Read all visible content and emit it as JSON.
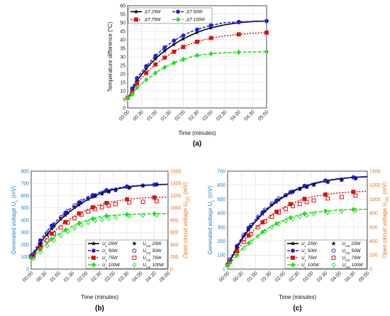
{
  "colors": {
    "s25": "#000000",
    "s50": "#1f1fdc",
    "s75": "#e01010",
    "s100": "#22dd22",
    "volt_axis": "#1e7fc8",
    "ocv_axis": "#e8701a"
  },
  "chart_data": [
    {
      "type": "line",
      "caption": "(a)",
      "xlabel": "Time (minutes)",
      "ylabel": "Temperature difference (°C)",
      "x_ticks": [
        "00:00",
        "00:30",
        "01:00",
        "01:30",
        "02:00",
        "02:30",
        "03:00",
        "03:30",
        "04:00",
        "04:30",
        "05:00"
      ],
      "xlim": [
        0,
        300
      ],
      "ylim": [
        0,
        60
      ],
      "y_ticks": [
        0,
        5,
        10,
        15,
        20,
        25,
        30,
        35,
        40,
        45,
        50,
        55,
        60
      ],
      "grid": true,
      "legend": "top-left",
      "series": [
        {
          "name": "ΔT 25W",
          "color_key": "s25",
          "dash": "",
          "marker": "star",
          "x": [
            0,
            5,
            10,
            15,
            20,
            30,
            40,
            50,
            60,
            70,
            80,
            90,
            100,
            110,
            120,
            135,
            150,
            165,
            180,
            210,
            240,
            270,
            300
          ],
          "y": [
            6,
            7.5,
            10.5,
            13,
            16,
            19.5,
            23,
            26,
            28.8,
            31.3,
            33.5,
            35.5,
            37.3,
            39,
            40.5,
            42.5,
            44.3,
            45.8,
            47,
            48.8,
            50,
            50.7,
            51
          ]
        },
        {
          "name": "ΔT 50W",
          "color_key": "s50",
          "dash": "4,2",
          "marker": "circle",
          "x": [
            0,
            5,
            10,
            15,
            20,
            30,
            40,
            50,
            60,
            70,
            80,
            90,
            100,
            110,
            120,
            135,
            150,
            165,
            180,
            210,
            240,
            270,
            300
          ],
          "y": [
            6,
            8,
            11.5,
            14.5,
            17.5,
            21,
            24.5,
            27.5,
            30.5,
            33,
            35.5,
            37.5,
            39.5,
            41,
            42.5,
            44.5,
            46,
            47.3,
            48.5,
            50,
            50.5,
            50.8,
            51
          ]
        },
        {
          "name": "ΔT 75W",
          "color_key": "s75",
          "dash": "2,2",
          "marker": "square",
          "x": [
            0,
            5,
            10,
            15,
            20,
            30,
            40,
            50,
            60,
            70,
            80,
            90,
            100,
            110,
            120,
            135,
            150,
            165,
            180,
            210,
            240,
            270,
            300
          ],
          "y": [
            6,
            7,
            9.5,
            12,
            14.5,
            17.5,
            20.5,
            23,
            25.5,
            27.5,
            29.5,
            31.3,
            33,
            34.5,
            35.8,
            37.5,
            38.8,
            40,
            41,
            42.3,
            43.2,
            43.8,
            44.2
          ]
        },
        {
          "name": "ΔT 100W",
          "color_key": "s100",
          "dash": "5,2",
          "marker": "diamond",
          "x": [
            0,
            5,
            10,
            15,
            20,
            30,
            40,
            50,
            60,
            70,
            80,
            90,
            100,
            110,
            120,
            135,
            150,
            165,
            180,
            210,
            240,
            270,
            300
          ],
          "y": [
            6,
            6.5,
            8,
            10,
            12,
            14,
            16.5,
            18.5,
            20.5,
            22.3,
            23.8,
            25.2,
            26.5,
            27.5,
            28.5,
            29.8,
            30.8,
            31.4,
            31.8,
            32.4,
            32.7,
            32.9,
            33
          ]
        }
      ]
    },
    {
      "type": "line",
      "caption": "(b)",
      "xlabel": "Time (minutes)",
      "ylabel": "Generated voltage U_L (mV)",
      "y2label": "Open circuit voltage U_OC (mV)",
      "x_ticks": [
        "00:00",
        "00:30",
        "01:00",
        "01:30",
        "02:00",
        "02:30",
        "03:00",
        "03:30",
        "04:00",
        "04:30",
        "05:00"
      ],
      "xlim": [
        0,
        300
      ],
      "ylim": [
        0,
        800
      ],
      "y_ticks": [
        0,
        100,
        200,
        300,
        400,
        500,
        600,
        700,
        800
      ],
      "y2lim": [
        0,
        1600
      ],
      "y2_ticks": [
        0,
        200,
        400,
        600,
        800,
        1000,
        1200,
        1400,
        1600
      ],
      "grid": true,
      "legend": "bottom-right",
      "series": [
        {
          "name": "U_L 25W",
          "color_key": "s25",
          "dash": "",
          "marker": "star",
          "x": [
            0,
            10,
            20,
            30,
            45,
            60,
            75,
            90,
            105,
            120,
            135,
            150,
            165,
            180,
            210,
            240,
            270,
            300
          ],
          "y": [
            100,
            150,
            210,
            265,
            330,
            390,
            440,
            485,
            525,
            560,
            590,
            615,
            635,
            650,
            670,
            682,
            688,
            692
          ]
        },
        {
          "name": "U_L 50W",
          "color_key": "s50",
          "dash": "4,2",
          "marker": "circle",
          "x": [
            0,
            10,
            20,
            30,
            45,
            60,
            75,
            90,
            105,
            120,
            135,
            150,
            165,
            180,
            210,
            240,
            270,
            300
          ],
          "y": [
            110,
            170,
            235,
            290,
            355,
            410,
            460,
            505,
            545,
            578,
            605,
            628,
            645,
            658,
            675,
            685,
            690,
            693
          ]
        },
        {
          "name": "U_L 75W",
          "color_key": "s75",
          "dash": "2,2",
          "marker": "square",
          "x": [
            0,
            10,
            20,
            30,
            45,
            60,
            75,
            90,
            105,
            120,
            135,
            150,
            165,
            180,
            210,
            240,
            270,
            300
          ],
          "y": [
            100,
            140,
            190,
            235,
            290,
            340,
            385,
            420,
            455,
            480,
            505,
            525,
            540,
            552,
            570,
            580,
            585,
            588
          ]
        },
        {
          "name": "U_L 100W",
          "color_key": "s100",
          "dash": "5,2",
          "marker": "diamond",
          "x": [
            0,
            10,
            20,
            30,
            45,
            60,
            75,
            90,
            105,
            120,
            135,
            150,
            165,
            180,
            210,
            240,
            270,
            300
          ],
          "y": [
            90,
            120,
            160,
            200,
            245,
            285,
            320,
            350,
            375,
            395,
            412,
            425,
            435,
            440,
            446,
            450,
            452,
            453
          ]
        },
        {
          "name": "U_OC 25W",
          "color_key": "s25",
          "marker": "star",
          "scatter": true,
          "axis": "y2",
          "x": [
            5,
            20,
            35,
            50,
            65,
            80,
            95,
            110,
            125,
            140,
            155,
            170,
            185,
            215,
            245,
            275
          ],
          "y": [
            230,
            400,
            560,
            700,
            820,
            920,
            1010,
            1080,
            1140,
            1190,
            1230,
            1260,
            1285,
            1330,
            1360,
            1380
          ]
        },
        {
          "name": "U_OC 50W",
          "color_key": "s50",
          "marker": "circle-open",
          "scatter": true,
          "axis": "y2",
          "x": [
            5,
            20,
            35,
            50,
            65,
            80,
            95,
            110,
            125,
            140,
            155,
            170,
            185,
            215,
            245,
            275
          ],
          "y": [
            250,
            430,
            590,
            730,
            850,
            950,
            1040,
            1110,
            1160,
            1200,
            1240,
            1270,
            1295,
            1330,
            1365,
            1385
          ]
        },
        {
          "name": "U_OC 75W",
          "color_key": "s75",
          "marker": "square-open",
          "scatter": true,
          "axis": "y2",
          "x": [
            5,
            20,
            35,
            50,
            65,
            80,
            95,
            110,
            125,
            140,
            155,
            170,
            185,
            215,
            245,
            275
          ],
          "y": [
            210,
            350,
            470,
            580,
            680,
            760,
            830,
            890,
            940,
            980,
            1010,
            1040,
            1060,
            1090,
            1100,
            1110
          ]
        },
        {
          "name": "U_OC 100W",
          "color_key": "s100",
          "marker": "diamond-open",
          "scatter": true,
          "axis": "y2",
          "x": [
            5,
            20,
            35,
            50,
            65,
            80,
            95,
            110,
            125,
            140,
            155,
            170,
            185,
            215,
            245,
            275
          ],
          "y": [
            170,
            280,
            380,
            470,
            550,
            610,
            670,
            720,
            760,
            790,
            810,
            830,
            850,
            870,
            880,
            885
          ]
        }
      ]
    },
    {
      "type": "line",
      "caption": "(c)",
      "xlabel": "Time (minutes)",
      "ylabel": "Generated voltage U_L (mV)",
      "y2label": "Open circuit voltage U_OC (mV)",
      "x_ticks": [
        "00:00",
        "00:30",
        "01:00",
        "01:30",
        "02:00",
        "02:30",
        "03:00",
        "03:30",
        "04:00",
        "04:30",
        "05:00"
      ],
      "xlim": [
        0,
        300
      ],
      "ylim": [
        0,
        700
      ],
      "y_ticks": [
        0,
        100,
        200,
        300,
        400,
        500,
        600,
        700
      ],
      "y2lim": [
        0,
        1400
      ],
      "y2_ticks": [
        0,
        200,
        400,
        600,
        800,
        1000,
        1200,
        1400
      ],
      "grid": true,
      "legend": "bottom-right",
      "series": [
        {
          "name": "U_L 25W",
          "color_key": "s25",
          "dash": "",
          "marker": "star",
          "x": [
            0,
            10,
            20,
            30,
            45,
            60,
            75,
            90,
            105,
            120,
            135,
            150,
            165,
            180,
            210,
            240,
            270,
            300
          ],
          "y": [
            30,
            90,
            150,
            210,
            280,
            340,
            395,
            440,
            480,
            515,
            545,
            570,
            590,
            605,
            630,
            645,
            655,
            660
          ]
        },
        {
          "name": "U_L 50W",
          "color_key": "s50",
          "dash": "4,2",
          "marker": "circle",
          "x": [
            0,
            10,
            20,
            30,
            45,
            60,
            75,
            90,
            105,
            120,
            135,
            150,
            165,
            180,
            210,
            240,
            270,
            300
          ],
          "y": [
            35,
            100,
            165,
            225,
            295,
            355,
            405,
            450,
            490,
            522,
            550,
            575,
            595,
            610,
            633,
            648,
            656,
            662
          ]
        },
        {
          "name": "U_L 75W",
          "color_key": "s75",
          "dash": "2,2",
          "marker": "square",
          "x": [
            0,
            10,
            20,
            30,
            45,
            60,
            75,
            90,
            105,
            120,
            135,
            150,
            165,
            180,
            210,
            240,
            270,
            300
          ],
          "y": [
            30,
            80,
            130,
            180,
            240,
            290,
            335,
            375,
            410,
            440,
            465,
            485,
            502,
            515,
            533,
            545,
            552,
            556
          ]
        },
        {
          "name": "U_L 100W",
          "color_key": "s100",
          "dash": "5,2",
          "marker": "diamond",
          "x": [
            0,
            10,
            20,
            30,
            45,
            60,
            75,
            90,
            105,
            120,
            135,
            150,
            165,
            180,
            210,
            240,
            270,
            300
          ],
          "y": [
            25,
            60,
            100,
            140,
            185,
            225,
            265,
            298,
            325,
            348,
            368,
            383,
            396,
            405,
            415,
            422,
            426,
            428
          ]
        },
        {
          "name": "U_OC 25W",
          "color_key": "s25",
          "marker": "star",
          "scatter": true,
          "axis": "y2",
          "x": [
            5,
            20,
            35,
            50,
            65,
            80,
            95,
            110,
            125,
            140,
            155,
            170,
            185,
            215,
            245,
            275
          ],
          "y": [
            120,
            310,
            470,
            610,
            730,
            830,
            920,
            990,
            1050,
            1100,
            1140,
            1170,
            1200,
            1240,
            1270,
            1290
          ]
        },
        {
          "name": "U_OC 50W",
          "color_key": "s50",
          "marker": "circle-open",
          "scatter": true,
          "axis": "y2",
          "x": [
            5,
            20,
            35,
            50,
            65,
            80,
            95,
            110,
            125,
            140,
            155,
            170,
            185,
            215,
            245,
            275
          ],
          "y": [
            140,
            330,
            490,
            630,
            750,
            850,
            940,
            1010,
            1060,
            1110,
            1150,
            1180,
            1210,
            1250,
            1280,
            1300
          ]
        },
        {
          "name": "U_OC 75W",
          "color_key": "s75",
          "marker": "square-open",
          "scatter": true,
          "axis": "y2",
          "x": [
            5,
            20,
            35,
            50,
            65,
            80,
            95,
            110,
            125,
            140,
            155,
            170,
            185,
            215,
            245,
            275
          ],
          "y": [
            110,
            260,
            390,
            500,
            600,
            680,
            750,
            810,
            860,
            900,
            930,
            960,
            980,
            1010,
            1030,
            1050
          ]
        },
        {
          "name": "U_OC 100W",
          "color_key": "s100",
          "marker": "diamond-open",
          "scatter": true,
          "axis": "y2",
          "x": [
            5,
            20,
            35,
            50,
            65,
            80,
            95,
            110,
            125,
            140,
            155,
            170,
            185,
            215,
            245,
            275
          ],
          "y": [
            90,
            200,
            300,
            390,
            470,
            540,
            600,
            650,
            690,
            720,
            750,
            770,
            790,
            810,
            830,
            840
          ]
        }
      ]
    }
  ]
}
